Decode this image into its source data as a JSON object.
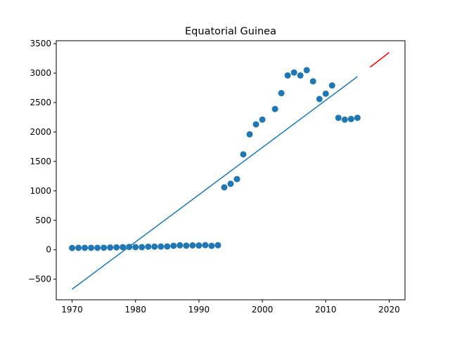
{
  "chart_data": {
    "type": "scatter",
    "title": "Equatorial Guinea",
    "xlabel": "",
    "ylabel": "",
    "xlim": [
      1967.5,
      2022.5
    ],
    "ylim": [
      -850,
      3550
    ],
    "xticks": [
      1970,
      1980,
      1990,
      2000,
      2010,
      2020
    ],
    "yticks": [
      -500,
      0,
      500,
      1000,
      1500,
      2000,
      2500,
      3000,
      3500
    ],
    "ytick_labels": [
      "−500",
      "0",
      "500",
      "1000",
      "1500",
      "2000",
      "2500",
      "3000",
      "3500"
    ],
    "grid": false,
    "legend": "none",
    "colors": {
      "points": "#1f77b4",
      "fit_line": "#1f77b4",
      "forecast_line": "#ff0000",
      "axes": "#000000"
    },
    "series": [
      {
        "type": "scatter",
        "x": [
          1970,
          1971,
          1972,
          1973,
          1974,
          1975,
          1976,
          1977,
          1978,
          1979,
          1980,
          1981,
          1982,
          1983,
          1984,
          1985,
          1986,
          1987,
          1988,
          1989,
          1990,
          1991,
          1992,
          1993,
          1994,
          1995,
          1996,
          1997,
          1998,
          1999,
          2000,
          2002,
          2003,
          2004,
          2005,
          2006,
          2007,
          2008,
          2009,
          2010,
          2011,
          2012,
          2013,
          2014,
          2015
        ],
        "y": [
          30,
          32,
          33,
          33,
          33,
          34,
          38,
          40,
          43,
          48,
          45,
          44,
          52,
          53,
          54,
          56,
          67,
          75,
          69,
          74,
          72,
          78,
          66,
          77,
          1060,
          1120,
          1200,
          1620,
          1960,
          2130,
          2210,
          2390,
          2660,
          2960,
          3010,
          2960,
          3050,
          2860,
          2560,
          2650,
          2790,
          2240,
          2210,
          2220,
          2240
        ]
      },
      {
        "type": "line",
        "x": [
          1970,
          2015
        ],
        "y": [
          -670,
          2940
        ]
      },
      {
        "type": "line",
        "x": [
          2017,
          2020
        ],
        "y": [
          3100,
          3350
        ]
      }
    ]
  }
}
